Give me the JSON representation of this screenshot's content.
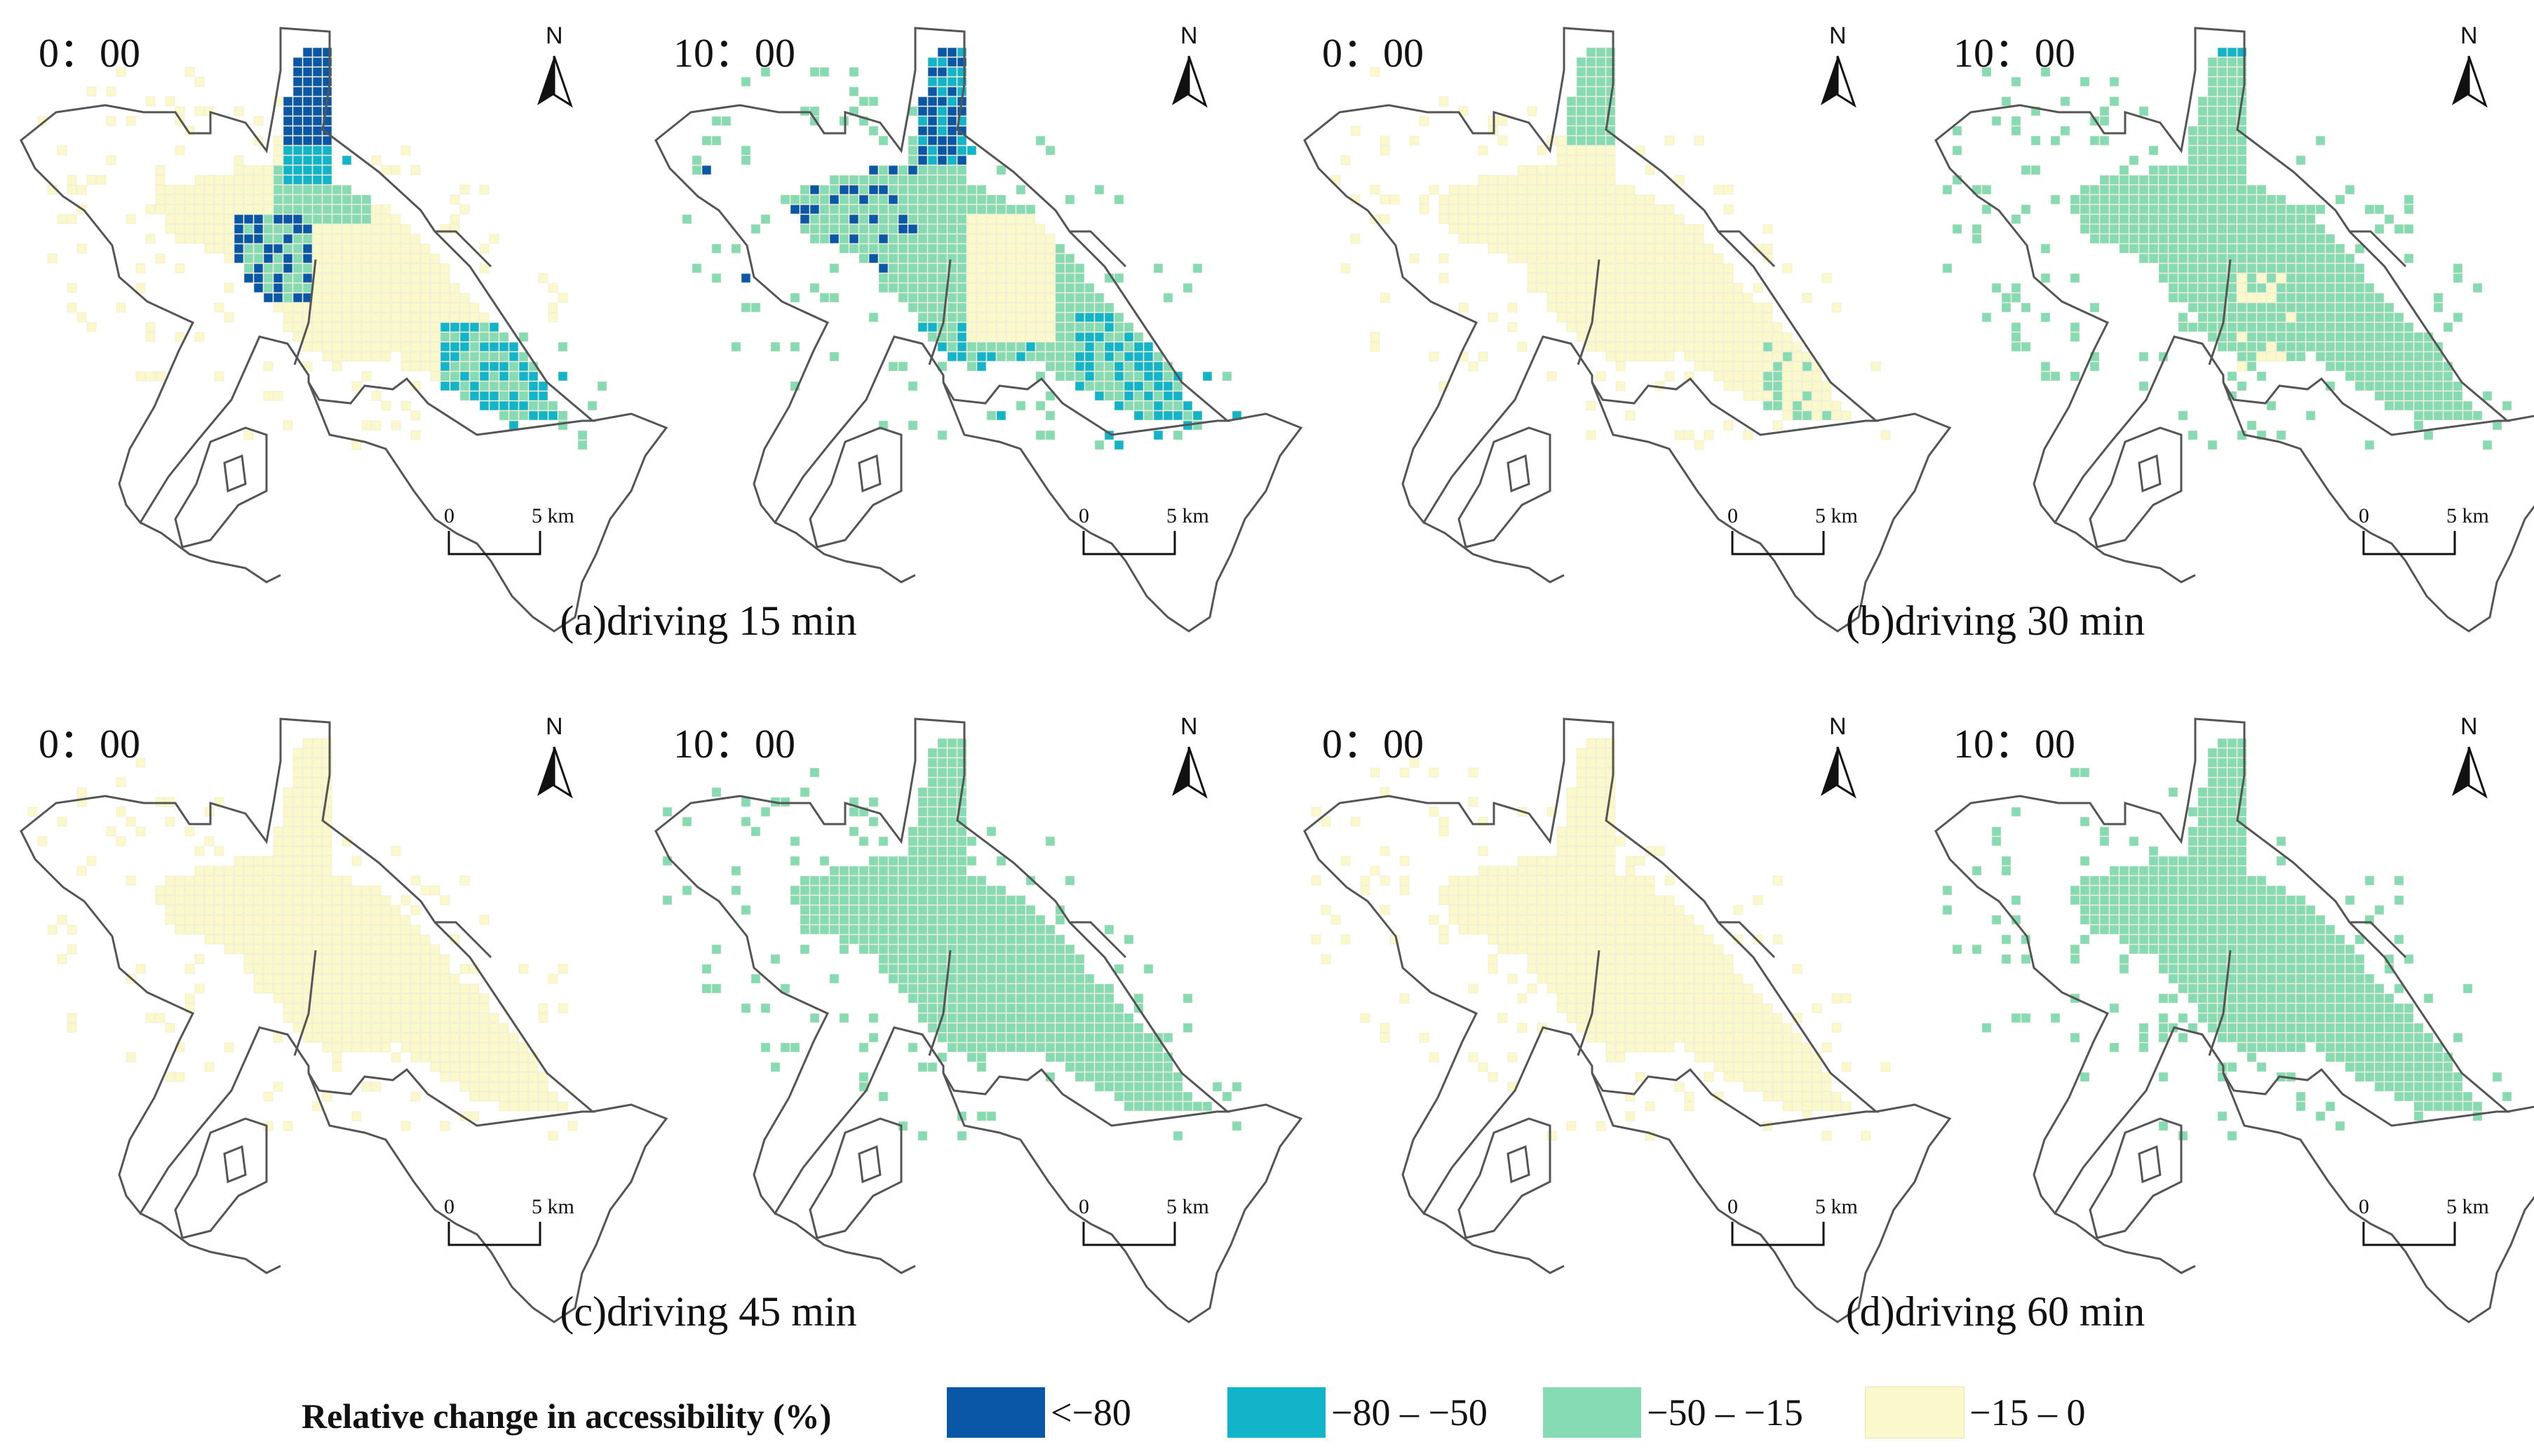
{
  "colors": {
    "lt_minus80": "#0b57a7",
    "minus80_minus50": "#12b4c9",
    "minus50_minus15": "#86dbb4",
    "minus15_0": "#fbf9cc",
    "boundary": "#555555"
  },
  "panels": [
    {
      "caption": "(a)driving 15 min",
      "maps": [
        {
          "time": "0：00",
          "scheme": "a0"
        },
        {
          "time": "10：00",
          "scheme": "a10"
        }
      ]
    },
    {
      "caption": "(b)driving 30 min",
      "maps": [
        {
          "time": "0：00",
          "scheme": "b0"
        },
        {
          "time": "10：00",
          "scheme": "b10"
        }
      ]
    },
    {
      "caption": "(c)driving 45 min",
      "maps": [
        {
          "time": "0：00",
          "scheme": "yellow"
        },
        {
          "time": "10：00",
          "scheme": "green"
        }
      ]
    },
    {
      "caption": "(d)driving 60 min",
      "maps": [
        {
          "time": "0：00",
          "scheme": "yellow"
        },
        {
          "time": "10：00",
          "scheme": "green"
        }
      ]
    }
  ],
  "north_label": "N",
  "scale": {
    "zero": "0",
    "five": "5 km"
  },
  "legend": {
    "title": "Relative change in accessibility (%)",
    "items": [
      {
        "label": "<−80",
        "color": "#0b57a7"
      },
      {
        "label": "−80 – −50",
        "color": "#12b4c9"
      },
      {
        "label": "−50 – −15",
        "color": "#86dbb4"
      },
      {
        "label": "−15 – 0",
        "color": "#fbf9cc"
      }
    ]
  }
}
